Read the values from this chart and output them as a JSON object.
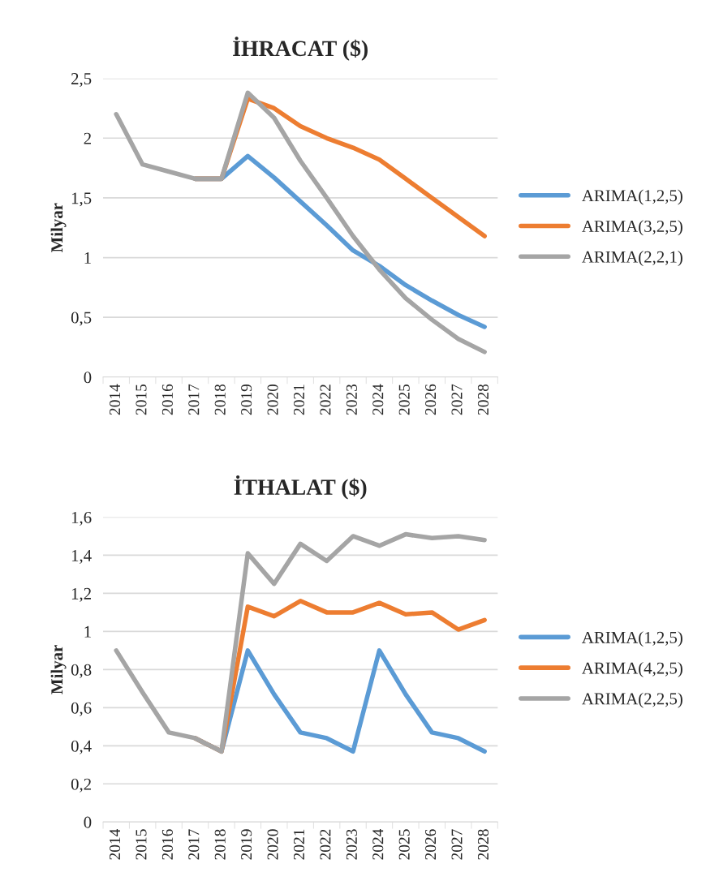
{
  "chart_data": [
    {
      "type": "line",
      "title": "İHRACAT ($)",
      "ylabel": "Milyar",
      "categories": [
        "2014",
        "2015",
        "2016",
        "2017",
        "2018",
        "2019",
        "2020",
        "2021",
        "2022",
        "2023",
        "2024",
        "2025",
        "2026",
        "2027",
        "2028"
      ],
      "series": [
        {
          "name": "ARIMA(1,2,5)",
          "color": "#5b9bd5",
          "values": [
            null,
            null,
            null,
            1.66,
            1.66,
            1.85,
            1.67,
            1.47,
            1.27,
            1.06,
            0.93,
            0.77,
            0.64,
            0.52,
            0.42
          ]
        },
        {
          "name": "ARIMA(3,2,5)",
          "color": "#ed7d31",
          "values": [
            null,
            null,
            null,
            1.66,
            1.66,
            2.33,
            2.25,
            2.1,
            2.0,
            1.92,
            1.82,
            1.66,
            1.5,
            1.34,
            1.18
          ]
        },
        {
          "name": "ARIMA(2,2,1)",
          "color": "#a5a5a5",
          "values": [
            2.2,
            1.78,
            1.72,
            1.66,
            1.66,
            2.38,
            2.17,
            1.81,
            1.5,
            1.18,
            0.9,
            0.66,
            0.48,
            0.32,
            0.21
          ]
        }
      ],
      "ylim": [
        0,
        2.5
      ],
      "yticks": [
        0,
        {
          "value": 0.5,
          "label": "0,5"
        },
        1,
        {
          "value": 1.5,
          "label": "1,5"
        },
        2,
        {
          "value": 2.5,
          "label": "2,5"
        }
      ],
      "grid": "y",
      "legend": "right",
      "marker": "none",
      "line_style": "solid"
    },
    {
      "type": "line",
      "title": "İTHALAT ($)",
      "ylabel": "Milyar",
      "categories": [
        "2014",
        "2015",
        "2016",
        "2017",
        "2018",
        "2019",
        "2020",
        "2021",
        "2022",
        "2023",
        "2024",
        "2025",
        "2026",
        "2027",
        "2028"
      ],
      "series": [
        {
          "name": "ARIMA(1,2,5)",
          "color": "#5b9bd5",
          "values": [
            null,
            null,
            null,
            0.44,
            0.37,
            0.9,
            0.67,
            0.47,
            0.44,
            0.37,
            0.9,
            0.67,
            0.47,
            0.44,
            0.37
          ]
        },
        {
          "name": "ARIMA(4,2,5)",
          "color": "#ed7d31",
          "values": [
            null,
            null,
            null,
            0.44,
            0.37,
            1.13,
            1.08,
            1.16,
            1.1,
            1.1,
            1.15,
            1.09,
            1.1,
            1.01,
            1.06
          ]
        },
        {
          "name": "ARIMA(2,2,5)",
          "color": "#a5a5a5",
          "values": [
            0.9,
            0.68,
            0.47,
            0.44,
            0.37,
            1.41,
            1.25,
            1.46,
            1.37,
            1.5,
            1.45,
            1.51,
            1.49,
            1.5,
            1.48
          ]
        }
      ],
      "ylim": [
        0,
        1.6
      ],
      "yticks": [
        0,
        {
          "value": 0.2,
          "label": "0,2"
        },
        {
          "value": 0.4,
          "label": "0,4"
        },
        {
          "value": 0.6,
          "label": "0,6"
        },
        {
          "value": 0.8,
          "label": "0,8"
        },
        1,
        {
          "value": 1.2,
          "label": "1,2"
        },
        {
          "value": 1.4,
          "label": "1,4"
        },
        {
          "value": 1.6,
          "label": "1,6"
        }
      ],
      "grid": "y",
      "legend": "right",
      "marker": "none",
      "line_style": "solid"
    }
  ]
}
